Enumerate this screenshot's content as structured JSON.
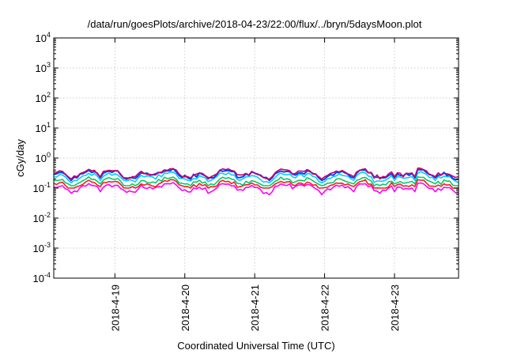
{
  "chart_data": {
    "type": "line",
    "title": "/data/run/goesPlots/archive/2018-04-23/22:00/flux/../bryn/5daysMoon.plot",
    "xlabel": "Coordinated Universal Time (UTC)",
    "ylabel": "cGy/day",
    "yscale": "log",
    "ylim": [
      0.0001,
      10000
    ],
    "xlim": [
      "2018-04-18 03:00",
      "2018-04-23 22:00"
    ],
    "grid": true,
    "x_ticks": [
      "2018-4-19",
      "2018-4-20",
      "2018-4-21",
      "2018-4-22",
      "2018-4-23"
    ],
    "y_ticks": [
      {
        "base": "10",
        "exp": "-4"
      },
      {
        "base": "10",
        "exp": "-3"
      },
      {
        "base": "10",
        "exp": "-2"
      },
      {
        "base": "10",
        "exp": "-1"
      },
      {
        "base": "10",
        "exp": "0"
      },
      {
        "base": "10",
        "exp": "1"
      },
      {
        "base": "10",
        "exp": "2"
      },
      {
        "base": "10",
        "exp": "3"
      },
      {
        "base": "10",
        "exp": "4"
      }
    ],
    "series": [
      {
        "color": "#ff00ff",
        "values_summary": {
          "typical": 0.12,
          "min": 0.06,
          "max": 0.16
        },
        "dips_at_hours": [
          8,
          16,
          27,
          46,
          54,
          75,
          103,
          117,
          124,
          131,
          144,
          150
        ]
      },
      {
        "color": "#ff1a1a",
        "values_summary": {
          "typical": 0.15,
          "min": 0.1,
          "max": 0.19
        }
      },
      {
        "color": "#00cc66",
        "values_summary": {
          "typical": 0.19,
          "min": 0.12,
          "max": 0.24
        }
      },
      {
        "color": "#00ccff",
        "values_summary": {
          "typical": 0.27,
          "min": 0.15,
          "max": 0.36
        }
      },
      {
        "color": "#0040ff",
        "values_summary": {
          "typical": 0.34,
          "min": 0.18,
          "max": 0.48
        }
      },
      {
        "color": "#cc0066",
        "values_summary": {
          "typical": 0.36,
          "min": 0.2,
          "max": 0.5
        }
      }
    ]
  }
}
